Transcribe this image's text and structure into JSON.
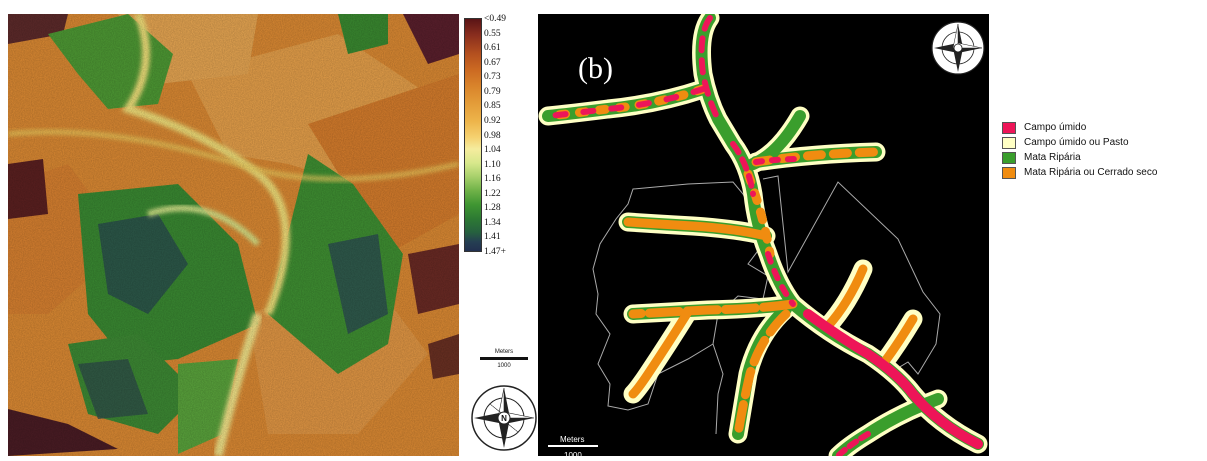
{
  "map_a": {
    "colorbar": {
      "labels": [
        "<0.49",
        "0.55",
        "0.61",
        "0.67",
        "0.73",
        "0.79",
        "0.85",
        "0.92",
        "0.98",
        "1.04",
        "1.10",
        "1.16",
        "1.22",
        "1.28",
        "1.34",
        "1.41",
        "1.47+"
      ],
      "colors": [
        "#5a1416",
        "#8a2e1e",
        "#b4501f",
        "#cc6a22",
        "#d9842b",
        "#e39b38",
        "#edb44a",
        "#f5d170",
        "#f5ec9e",
        "#d8e88c",
        "#a7d06b",
        "#6fb248",
        "#3f9632",
        "#2d7a33",
        "#26603f",
        "#253f52",
        "#223050"
      ]
    },
    "scale_title": "Meters",
    "scale_value": "1000",
    "north_label": "N"
  },
  "map_b": {
    "panel_label": "(b)",
    "scale_title": "Meters",
    "scale_value": "1000",
    "north_label": "N",
    "legend": [
      {
        "label": "Campo úmido",
        "color": "#ee1558"
      },
      {
        "label": "Campo úmido ou Pasto",
        "color": "#ffffc4"
      },
      {
        "label": "Mata Ripária",
        "color": "#3a9e2c"
      },
      {
        "label": "Mata Ripária ou Cerrado seco",
        "color": "#f08c10"
      }
    ]
  }
}
